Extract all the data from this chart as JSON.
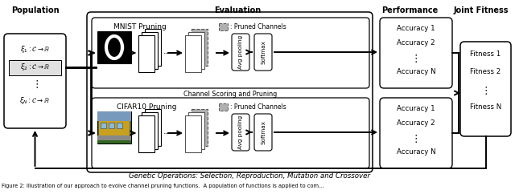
{
  "population_label": "Population",
  "evaluation_label": "Evaluation",
  "performance_label": "Performance",
  "joint_fitness_label": "Joint Fitness",
  "mnist_label": "MNIST Pruning",
  "cifar_label": "CIFAR10 Pruning",
  "pruned_label": ": Pruned Channels",
  "channel_label": "Channel Scoring and Pruning",
  "genetic_label": "Genetic Operations: Selection, Reproduction, Mutation and Crossover",
  "accuracy_entries": [
    "Accuracy 1",
    "Accuracy 2",
    "⋮",
    "Accuracy N"
  ],
  "fitness_entries": [
    "Fitness 1",
    "Fitness 2",
    "⋮",
    "Fitness N"
  ],
  "avg_pool_label": "Avg pooling",
  "softmax_label": "Softmax",
  "caption": "Figure 2: Illustration of our approach to evolve channel pruning functions.  A population of functions is applied to com...",
  "bg_color": "#ffffff"
}
